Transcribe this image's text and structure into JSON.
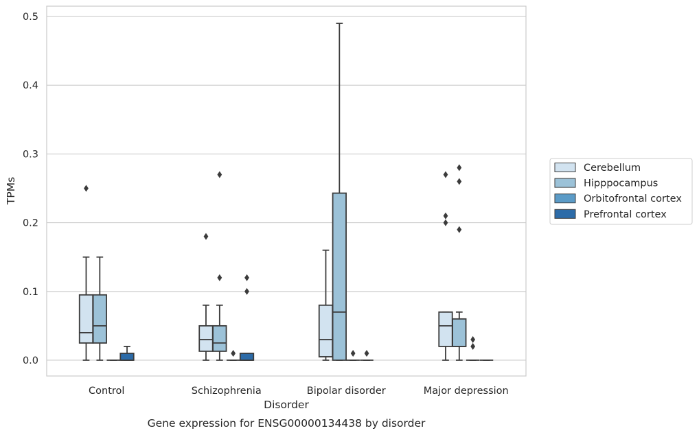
{
  "chart_data": {
    "type": "box",
    "title": "",
    "caption": "Gene expression for ENSG00000134438 by disorder",
    "xlabel": "Disorder",
    "ylabel": "TPMs",
    "ylim": [
      -0.023,
      0.515
    ],
    "yticks": [
      0.0,
      0.1,
      0.2,
      0.3,
      0.4,
      0.5
    ],
    "ytick_labels": [
      "0.0",
      "0.1",
      "0.2",
      "0.3",
      "0.4",
      "0.5"
    ],
    "grid": true,
    "legend_position": "right",
    "categories": [
      "Control",
      "Schizophrenia",
      "Bipolar disorder",
      "Major depression"
    ],
    "series": [
      {
        "name": "Cerebellum",
        "color": "#d2e3f0",
        "boxes": [
          {
            "whislo": 0.0,
            "q1": 0.025,
            "med": 0.04,
            "q3": 0.095,
            "whishi": 0.15,
            "fliers": [
              0.25
            ]
          },
          {
            "whislo": 0.0,
            "q1": 0.013,
            "med": 0.03,
            "q3": 0.05,
            "whishi": 0.08,
            "fliers": [
              0.18
            ]
          },
          {
            "whislo": 0.0,
            "q1": 0.005,
            "med": 0.03,
            "q3": 0.08,
            "whishi": 0.16,
            "fliers": []
          },
          {
            "whislo": 0.0,
            "q1": 0.02,
            "med": 0.05,
            "q3": 0.07,
            "whishi": 0.07,
            "fliers": [
              0.2,
              0.21,
              0.27
            ]
          }
        ]
      },
      {
        "name": "Hipppocampus",
        "color": "#9cc2d8",
        "boxes": [
          {
            "whislo": 0.0,
            "q1": 0.025,
            "med": 0.05,
            "q3": 0.095,
            "whishi": 0.15,
            "fliers": []
          },
          {
            "whislo": 0.0,
            "q1": 0.013,
            "med": 0.025,
            "q3": 0.05,
            "whishi": 0.08,
            "fliers": [
              0.12,
              0.27
            ]
          },
          {
            "whislo": 0.0,
            "q1": 0.0,
            "med": 0.07,
            "q3": 0.243,
            "whishi": 0.49,
            "fliers": []
          },
          {
            "whislo": 0.0,
            "q1": 0.02,
            "med": 0.02,
            "q3": 0.06,
            "whishi": 0.07,
            "fliers": [
              0.19,
              0.26,
              0.28
            ]
          }
        ]
      },
      {
        "name": "Orbitofrontal cortex",
        "color": "#5b9bc7",
        "boxes": [
          {
            "whislo": 0.0,
            "q1": 0.0,
            "med": 0.0,
            "q3": 0.0,
            "whishi": 0.0,
            "fliers": []
          },
          {
            "whislo": 0.0,
            "q1": 0.0,
            "med": 0.0,
            "q3": 0.0,
            "whishi": 0.0,
            "fliers": [
              0.01
            ]
          },
          {
            "whislo": 0.0,
            "q1": 0.0,
            "med": 0.0,
            "q3": 0.0,
            "whishi": 0.0,
            "fliers": [
              0.01
            ]
          },
          {
            "whislo": 0.0,
            "q1": 0.0,
            "med": 0.0,
            "q3": 0.0,
            "whishi": 0.0,
            "fliers": [
              0.02,
              0.03
            ]
          }
        ]
      },
      {
        "name": "Prefrontal cortex",
        "color": "#2c6ba8",
        "boxes": [
          {
            "whislo": 0.0,
            "q1": 0.0,
            "med": 0.0,
            "q3": 0.01,
            "whishi": 0.02,
            "fliers": []
          },
          {
            "whislo": 0.0,
            "q1": 0.0,
            "med": 0.0,
            "q3": 0.01,
            "whishi": 0.01,
            "fliers": [
              0.1,
              0.12
            ]
          },
          {
            "whislo": 0.0,
            "q1": 0.0,
            "med": 0.0,
            "q3": 0.0,
            "whishi": 0.0,
            "fliers": [
              0.01
            ]
          },
          {
            "whislo": 0.0,
            "q1": 0.0,
            "med": 0.0,
            "q3": 0.0,
            "whishi": 0.0,
            "fliers": []
          }
        ]
      }
    ]
  }
}
